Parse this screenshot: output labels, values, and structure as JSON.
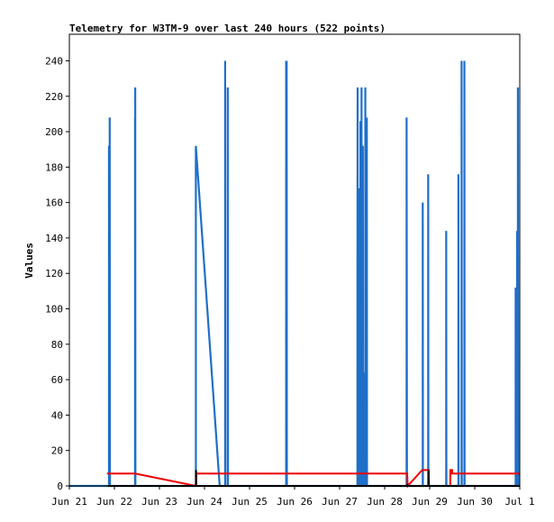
{
  "chart_data": {
    "type": "line",
    "title": "Telemetry for W3TM-9 over last 240 hours (522 points)",
    "xlabel": "",
    "ylabel": "Values",
    "x_tick_labels": [
      "Jun 21",
      "Jun 22",
      "Jun 23",
      "Jun 24",
      "Jun 25",
      "Jun 26",
      "Jun 27",
      "Jun 28",
      "Jun 29",
      "Jun 30",
      "Jul 1"
    ],
    "y_ticks": [
      0,
      20,
      40,
      60,
      80,
      100,
      120,
      140,
      160,
      180,
      200,
      220,
      240
    ],
    "xlim": [
      0,
      240
    ],
    "ylim": [
      0,
      255
    ],
    "grid": false,
    "legend": "none",
    "colors": {
      "blue": "#1f6fc8",
      "red": "#ee0000",
      "black": "#000000",
      "frame": "#000000"
    },
    "series": [
      {
        "color": "#1f6fc8",
        "points": [
          [
            0,
            0
          ],
          [
            21.1,
            0
          ],
          [
            21.1,
            192
          ],
          [
            21.2,
            0
          ],
          [
            21.5,
            0
          ],
          [
            21.5,
            208
          ],
          [
            21.6,
            0
          ],
          [
            35.0,
            0
          ],
          [
            35.0,
            208
          ],
          [
            35.1,
            0
          ],
          [
            35.1,
            225
          ],
          [
            35.2,
            0
          ],
          [
            67.4,
            0
          ],
          [
            67.4,
            192
          ],
          [
            80.1,
            0
          ],
          [
            83.0,
            0
          ],
          [
            83.0,
            240
          ],
          [
            83.1,
            0
          ],
          [
            84.4,
            0
          ],
          [
            84.4,
            225
          ],
          [
            84.5,
            0
          ],
          [
            115.5,
            0
          ],
          [
            115.5,
            240
          ],
          [
            115.6,
            0
          ],
          [
            115.8,
            0
          ],
          [
            115.8,
            240
          ],
          [
            115.9,
            0
          ],
          [
            153.5,
            0
          ],
          [
            153.5,
            112
          ],
          [
            153.6,
            225
          ],
          [
            153.7,
            0
          ],
          [
            154.0,
            0
          ],
          [
            154.0,
            93
          ],
          [
            154.2,
            0
          ],
          [
            154.6,
            0
          ],
          [
            154.6,
            168
          ],
          [
            154.8,
            0
          ],
          [
            155.1,
            0
          ],
          [
            155.1,
            206
          ],
          [
            155.3,
            0
          ],
          [
            155.7,
            0
          ],
          [
            155.7,
            225
          ],
          [
            155.8,
            0
          ],
          [
            156.4,
            0
          ],
          [
            156.4,
            192
          ],
          [
            156.5,
            0
          ],
          [
            157.1,
            0
          ],
          [
            157.1,
            64
          ],
          [
            157.2,
            0
          ],
          [
            157.7,
            0
          ],
          [
            157.7,
            225
          ],
          [
            157.8,
            0
          ],
          [
            158.5,
            0
          ],
          [
            158.5,
            208
          ],
          [
            158.6,
            0
          ],
          [
            179.7,
            0
          ],
          [
            179.7,
            208
          ],
          [
            179.9,
            0
          ],
          [
            188.3,
            0
          ],
          [
            188.3,
            160
          ],
          [
            188.4,
            0
          ],
          [
            191.2,
            0
          ],
          [
            191.2,
            176
          ],
          [
            191.3,
            0
          ],
          [
            200.8,
            0
          ],
          [
            200.8,
            144
          ],
          [
            200.9,
            0
          ],
          [
            207.3,
            0
          ],
          [
            207.3,
            176
          ],
          [
            207.4,
            0
          ],
          [
            209.0,
            0
          ],
          [
            209.0,
            240
          ],
          [
            209.1,
            0
          ],
          [
            210.5,
            0
          ],
          [
            210.5,
            240
          ],
          [
            210.6,
            0
          ],
          [
            237.8,
            0
          ],
          [
            237.8,
            112
          ],
          [
            237.9,
            0
          ],
          [
            238.2,
            0
          ],
          [
            238.2,
            64
          ],
          [
            238.3,
            0
          ],
          [
            238.6,
            0
          ],
          [
            238.6,
            144
          ],
          [
            238.7,
            0
          ],
          [
            239.0,
            0
          ],
          [
            239.0,
            225
          ],
          [
            239.2,
            0
          ],
          [
            240,
            0
          ]
        ]
      },
      {
        "color": "#ee0000",
        "points": [
          [
            20.0,
            7
          ],
          [
            35.0,
            7
          ],
          [
            67.5,
            0
          ],
          [
            67.6,
            7
          ],
          [
            180.0,
            7
          ],
          [
            180.3,
            0
          ],
          [
            188.0,
            9
          ],
          [
            191.5,
            9
          ],
          [
            191.6,
            0
          ],
          [
            203.0,
            0
          ],
          [
            203.0,
            9
          ],
          [
            204.0,
            9
          ],
          [
            204.0,
            7
          ],
          [
            240,
            7
          ]
        ]
      },
      {
        "color": "#000000",
        "points": [
          [
            20.5,
            0
          ],
          [
            67.5,
            0
          ],
          [
            67.5,
            9
          ],
          [
            67.6,
            0
          ],
          [
            180.0,
            0
          ],
          [
            180.0,
            1
          ],
          [
            180.1,
            0
          ],
          [
            191.4,
            0
          ],
          [
            191.4,
            9
          ],
          [
            191.5,
            0
          ],
          [
            240,
            0
          ]
        ]
      }
    ]
  }
}
